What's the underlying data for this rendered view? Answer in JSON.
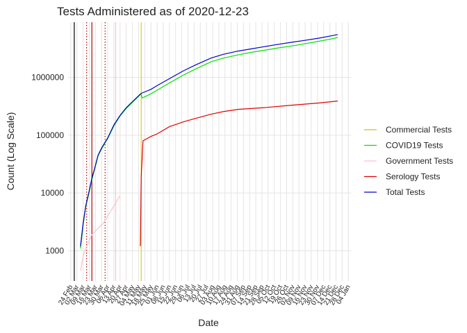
{
  "chart_data": {
    "type": "line",
    "title": "Tests Administered as of 2020-12-23",
    "x_label": "Date",
    "y_label": "Count (Log Scale)",
    "log_y": true,
    "grid": true,
    "legend": "right",
    "xlim": [
      "21 Feb",
      "07 Jan"
    ],
    "xticks": [
      "24 Feb",
      "02 Mar",
      "09 Mar",
      "16 Mar",
      "23 Mar",
      "30 Mar",
      "06 Apr",
      "13 Apr",
      "20 Apr",
      "27 Apr",
      "04 May",
      "11 May",
      "18 May",
      "25 May",
      "01 Jun",
      "08 Jun",
      "15 Jun",
      "22 Jun",
      "29 Jun",
      "06 Jul",
      "13 Jul",
      "20 Jul",
      "27 Jul",
      "03 Aug",
      "10 Aug",
      "17 Aug",
      "24 Aug",
      "31 Aug",
      "07 Sep",
      "14 Sep",
      "21 Sep",
      "28 Sep",
      "05 Oct",
      "12 Oct",
      "19 Oct",
      "26 Oct",
      "02 Nov",
      "09 Nov",
      "16 Nov",
      "23 Nov",
      "30 Nov",
      "07 Dec",
      "14 Dec",
      "21 Dec",
      "28 Dec",
      "04 Jan"
    ],
    "ylim": [
      300,
      9000000
    ],
    "yticks": [
      1000,
      10000,
      100000,
      1000000
    ],
    "reference_lines": [
      {
        "x": "28 Feb",
        "color": "#000000",
        "dash": false
      },
      {
        "x": "13 Mar",
        "color": "#b00000",
        "dash": true
      },
      {
        "x": "19 Mar",
        "color": "#b00000",
        "dash": false
      },
      {
        "x": "03 Apr",
        "color": "#b00000",
        "dash": true
      },
      {
        "x": "15 Apr",
        "color": "#ffc0cb",
        "dash": false
      },
      {
        "x": "14 May",
        "color": "#e0d000",
        "dash": false
      }
    ],
    "series": [
      {
        "name": "Commercial Tests",
        "color": "#d4c000",
        "x": [
          "06 Mar",
          "09 Mar",
          "12 Mar",
          "16 Mar",
          "19 Mar",
          "23 Mar",
          "26 Mar",
          "30 Mar",
          "06 Apr",
          "13 Apr",
          "20 Apr",
          "27 Apr",
          "04 May",
          "11 May",
          "14 May"
        ],
        "values": [
          1100,
          2800,
          5800,
          10500,
          17000,
          29000,
          44000,
          58000,
          88000,
          145000,
          215000,
          290000,
          370000,
          470000,
          520000
        ]
      },
      {
        "name": "COVID19 Tests",
        "color": "#00e000",
        "x": [
          "06 Mar",
          "09 Mar",
          "12 Mar",
          "16 Mar",
          "19 Mar",
          "23 Mar",
          "26 Mar",
          "30 Mar",
          "06 Apr",
          "13 Apr",
          "20 Apr",
          "27 Apr",
          "04 May",
          "11 May",
          "14 May",
          "15 May",
          "18 May",
          "25 May",
          "01 Jun",
          "15 Jun",
          "01 Jul",
          "15 Jul",
          "01 Aug",
          "15 Aug",
          "01 Sep",
          "15 Sep",
          "01 Oct",
          "15 Oct",
          "01 Nov",
          "15 Nov",
          "01 Dec",
          "15 Dec",
          "23 Dec"
        ],
        "values": [
          1100,
          2800,
          5800,
          10500,
          17000,
          29000,
          44000,
          58000,
          88000,
          145000,
          215000,
          290000,
          370000,
          470000,
          520000,
          440000,
          460000,
          520000,
          600000,
          800000,
          1100000,
          1400000,
          1850000,
          2150000,
          2450000,
          2700000,
          2950000,
          3200000,
          3500000,
          3800000,
          4200000,
          4600000,
          4900000
        ]
      },
      {
        "name": "Government Tests",
        "color": "#ffc0cb",
        "x": [
          "06 Mar",
          "09 Mar",
          "12 Mar",
          "16 Mar",
          "19 Mar",
          "23 Mar",
          "01 Apr",
          "10 Apr",
          "20 Apr"
        ],
        "values": [
          450,
          800,
          1100,
          1500,
          1900,
          2200,
          3000,
          5000,
          9000
        ]
      },
      {
        "name": "Serology Tests",
        "color": "#e00000",
        "x": [
          "13 May",
          "14 May",
          "16 May",
          "25 May",
          "01 Jun",
          "15 Jun",
          "01 Jul",
          "15 Jul",
          "01 Aug",
          "15 Aug",
          "01 Sep",
          "01 Oct",
          "01 Nov",
          "01 Dec",
          "23 Dec"
        ],
        "values": [
          1200,
          19000,
          80000,
          95000,
          105000,
          140000,
          170000,
          195000,
          230000,
          255000,
          280000,
          300000,
          330000,
          360000,
          390000
        ]
      },
      {
        "name": "Total Tests",
        "color": "#0000cd",
        "x": [
          "06 Mar",
          "09 Mar",
          "12 Mar",
          "16 Mar",
          "19 Mar",
          "23 Mar",
          "26 Mar",
          "30 Mar",
          "06 Apr",
          "13 Apr",
          "20 Apr",
          "27 Apr",
          "04 May",
          "11 May",
          "14 May",
          "18 May",
          "25 May",
          "01 Jun",
          "15 Jun",
          "01 Jul",
          "15 Jul",
          "01 Aug",
          "15 Aug",
          "01 Sep",
          "15 Sep",
          "01 Oct",
          "15 Oct",
          "01 Nov",
          "15 Nov",
          "01 Dec",
          "15 Dec",
          "23 Dec"
        ],
        "values": [
          1200,
          3000,
          6000,
          11000,
          18000,
          30000,
          45000,
          60000,
          90000,
          150000,
          220000,
          300000,
          380000,
          480000,
          530000,
          560000,
          620000,
          720000,
          950000,
          1300000,
          1650000,
          2150000,
          2500000,
          2850000,
          3100000,
          3400000,
          3700000,
          4050000,
          4350000,
          4750000,
          5200000,
          5500000
        ]
      }
    ]
  }
}
